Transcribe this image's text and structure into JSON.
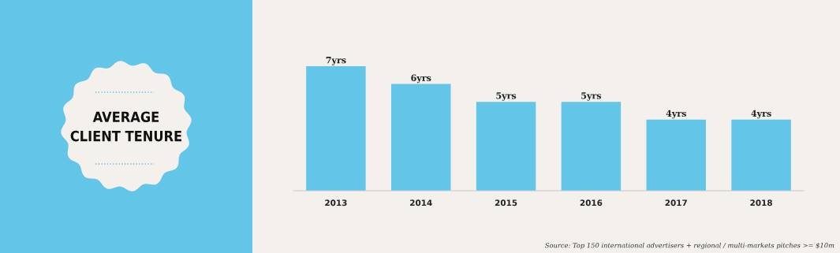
{
  "chart_data": {
    "type": "bar",
    "title": "AVERAGE\nCLIENT TENURE",
    "categories": [
      "2013",
      "2014",
      "2015",
      "2016",
      "2017",
      "2018"
    ],
    "values": [
      7,
      6,
      5,
      5,
      4,
      4
    ],
    "value_labels": [
      "7yrs",
      "6yrs",
      "5yrs",
      "5yrs",
      "4yrs",
      "4yrs"
    ],
    "color": "#63c6e9",
    "grid": false,
    "legend": false,
    "annotations": [
      "Source: Top 150 international advertisers + regional / multi-markets pitches >= $10m"
    ]
  }
}
